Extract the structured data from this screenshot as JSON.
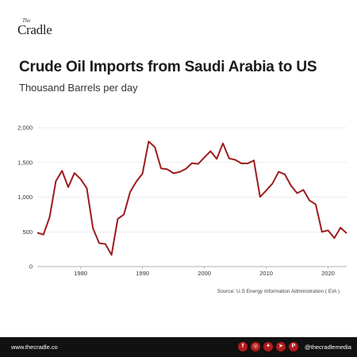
{
  "brand": {
    "logo_small": "The",
    "logo_word": "Cradle",
    "website": "www.thecradle.co",
    "handle": "@thecradlemedia"
  },
  "social_icons": [
    "facebook-icon",
    "instagram-icon",
    "twitter-icon",
    "telegram-icon",
    "patreon-icon"
  ],
  "source": "Source: U.S Energy Information Administration ( EIA )",
  "colors": {
    "line": "#9e1b1b",
    "footer": "#111111",
    "accent": "#b31b1b"
  },
  "chart_data": {
    "type": "line",
    "title": "Crude Oil Imports from Saudi Arabia to US",
    "subtitle": "Thousand Barrels per day",
    "xlabel": "",
    "ylabel": "",
    "xlim": [
      1973,
      2023
    ],
    "ylim": [
      0,
      2000
    ],
    "yticks": [
      0,
      500,
      1000,
      1500,
      2000
    ],
    "ytick_labels": [
      "0",
      "500",
      "1,000",
      "1,500",
      "2,000"
    ],
    "xticks": [
      1980,
      1990,
      2000,
      2010,
      2020
    ],
    "xtick_labels": [
      "1980",
      "1990",
      "2000",
      "2010",
      "2020"
    ],
    "grid": "horizontal",
    "series": [
      {
        "x": [
          1973,
          1974,
          1975,
          1976,
          1977,
          1978,
          1979,
          1980,
          1981,
          1982,
          1983,
          1984,
          1985,
          1986,
          1987,
          1988,
          1989,
          1990,
          1991,
          1992,
          1993,
          1994,
          1995,
          1996,
          1997,
          1998,
          1999,
          2000,
          2001,
          2002,
          2003,
          2004,
          2005,
          2006,
          2007,
          2008,
          2009,
          2010,
          2011,
          2012,
          2013,
          2014,
          2015,
          2016,
          2017,
          2018,
          2019,
          2020,
          2021,
          2022,
          2023
        ],
        "values": [
          486,
          461,
          715,
          1230,
          1380,
          1144,
          1347,
          1261,
          1129,
          552,
          337,
          325,
          168,
          685,
          751,
          1073,
          1224,
          1339,
          1802,
          1720,
          1414,
          1402,
          1344,
          1363,
          1407,
          1490,
          1478,
          1572,
          1662,
          1552,
          1774,
          1558,
          1537,
          1486,
          1485,
          1529,
          1004,
          1096,
          1195,
          1365,
          1329,
          1166,
          1057,
          1104,
          952,
          895,
          500,
          522,
          410,
          560,
          480
        ]
      }
    ]
  }
}
